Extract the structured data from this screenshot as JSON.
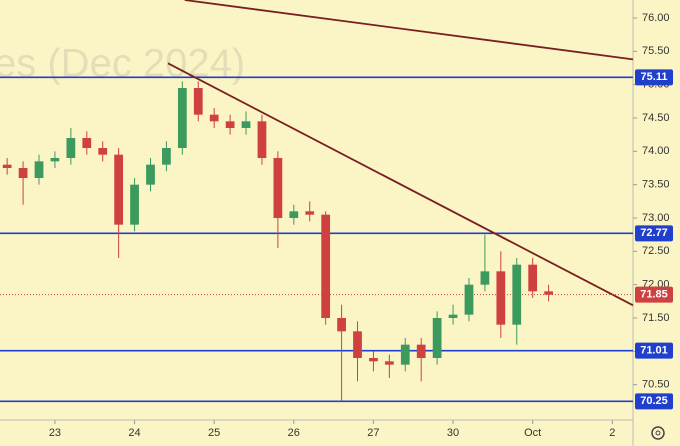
{
  "chart_data": {
    "type": "candlestick",
    "watermark": "es (Dec 2024)",
    "x": [
      -0.6,
      -0.4,
      -0.2,
      0.0,
      0.2,
      0.4,
      0.6,
      0.8,
      1.0,
      1.2,
      1.4,
      1.6,
      1.8,
      2.0,
      2.2,
      2.4,
      2.6,
      2.8,
      3.0,
      3.2,
      3.4,
      3.6,
      3.8,
      4.0,
      4.2,
      4.4,
      4.6,
      4.8,
      5.0,
      5.2,
      5.4,
      5.6,
      5.8,
      6.0,
      6.2
    ],
    "open": [
      73.8,
      73.75,
      73.6,
      73.85,
      73.9,
      74.2,
      74.05,
      73.95,
      72.9,
      73.5,
      73.8,
      74.05,
      74.95,
      74.55,
      74.45,
      74.35,
      74.45,
      73.9,
      73.0,
      73.1,
      73.05,
      71.5,
      71.3,
      70.9,
      70.85,
      70.8,
      71.1,
      70.9,
      71.5,
      71.55,
      72.0,
      72.2,
      71.4,
      72.3,
      71.9
    ],
    "high": [
      73.9,
      73.85,
      73.95,
      74.0,
      74.35,
      74.3,
      74.15,
      74.05,
      73.6,
      73.9,
      74.15,
      75.05,
      75.05,
      74.65,
      74.55,
      74.6,
      74.55,
      74.0,
      73.2,
      73.25,
      73.1,
      71.7,
      71.45,
      71.0,
      70.95,
      71.2,
      71.2,
      71.6,
      71.7,
      72.1,
      72.75,
      72.5,
      72.4,
      72.4,
      72.0
    ],
    "low": [
      73.65,
      73.2,
      73.5,
      73.75,
      73.8,
      73.95,
      73.85,
      72.4,
      72.8,
      73.4,
      73.7,
      73.95,
      74.45,
      74.35,
      74.25,
      74.25,
      73.8,
      72.55,
      72.9,
      72.95,
      71.4,
      70.25,
      70.55,
      70.7,
      70.6,
      70.7,
      70.55,
      70.8,
      71.4,
      71.45,
      71.9,
      71.2,
      71.1,
      71.8,
      71.75
    ],
    "close": [
      73.75,
      73.6,
      73.85,
      73.9,
      74.2,
      74.05,
      73.95,
      72.9,
      73.5,
      73.8,
      74.05,
      74.95,
      74.55,
      74.45,
      74.35,
      74.45,
      73.9,
      73.0,
      73.1,
      73.05,
      71.5,
      71.3,
      70.9,
      70.85,
      70.8,
      71.1,
      70.9,
      71.5,
      71.55,
      72.0,
      72.2,
      71.4,
      72.3,
      71.9,
      71.85
    ],
    "up_color": "#3d9a5e",
    "down_color": "#cf4040",
    "levels": [
      {
        "value": 75.11,
        "color": "#1f3fcc"
      },
      {
        "value": 72.77,
        "color": "#1f3fcc"
      },
      {
        "value": 71.01,
        "color": "#1f3fcc"
      },
      {
        "value": 70.25,
        "color": "#1f3fcc"
      }
    ],
    "last_price": {
      "value": 71.85,
      "color": "#cf4040"
    },
    "trendlines": [
      {
        "x": [
          1.63,
          7.26
        ],
        "y": [
          76.27,
          75.38
        ],
        "color": "#7a1f1f"
      },
      {
        "x": [
          1.42,
          7.26
        ],
        "y": [
          75.32,
          71.69
        ],
        "color": "#7a1f1f"
      }
    ],
    "xlim": [
      -0.69,
      7.26
    ],
    "ylim": [
      69.97,
      76.27
    ],
    "xticks": [
      {
        "value": 0,
        "label": "23"
      },
      {
        "value": 1,
        "label": "24"
      },
      {
        "value": 2,
        "label": "25"
      },
      {
        "value": 3,
        "label": "26"
      },
      {
        "value": 4,
        "label": "27"
      },
      {
        "value": 5,
        "label": "30"
      },
      {
        "value": 6,
        "label": "Oct"
      },
      {
        "value": 7,
        "label": "2"
      }
    ],
    "yticks": [
      {
        "value": 76,
        "label": "76.00"
      },
      {
        "value": 75.5,
        "label": "75.50"
      },
      {
        "value": 75,
        "label": "75.00"
      },
      {
        "value": 74.5,
        "label": "74.50"
      },
      {
        "value": 74,
        "label": "74.00"
      },
      {
        "value": 73.5,
        "label": "73.50"
      },
      {
        "value": 73,
        "label": "73.00"
      },
      {
        "value": 72.5,
        "label": "72.50"
      },
      {
        "value": 72,
        "label": "72.00"
      },
      {
        "value": 71.5,
        "label": "71.50"
      },
      {
        "value": 71,
        "label": "71.00"
      },
      {
        "value": 70.5,
        "label": "70.50"
      }
    ]
  }
}
